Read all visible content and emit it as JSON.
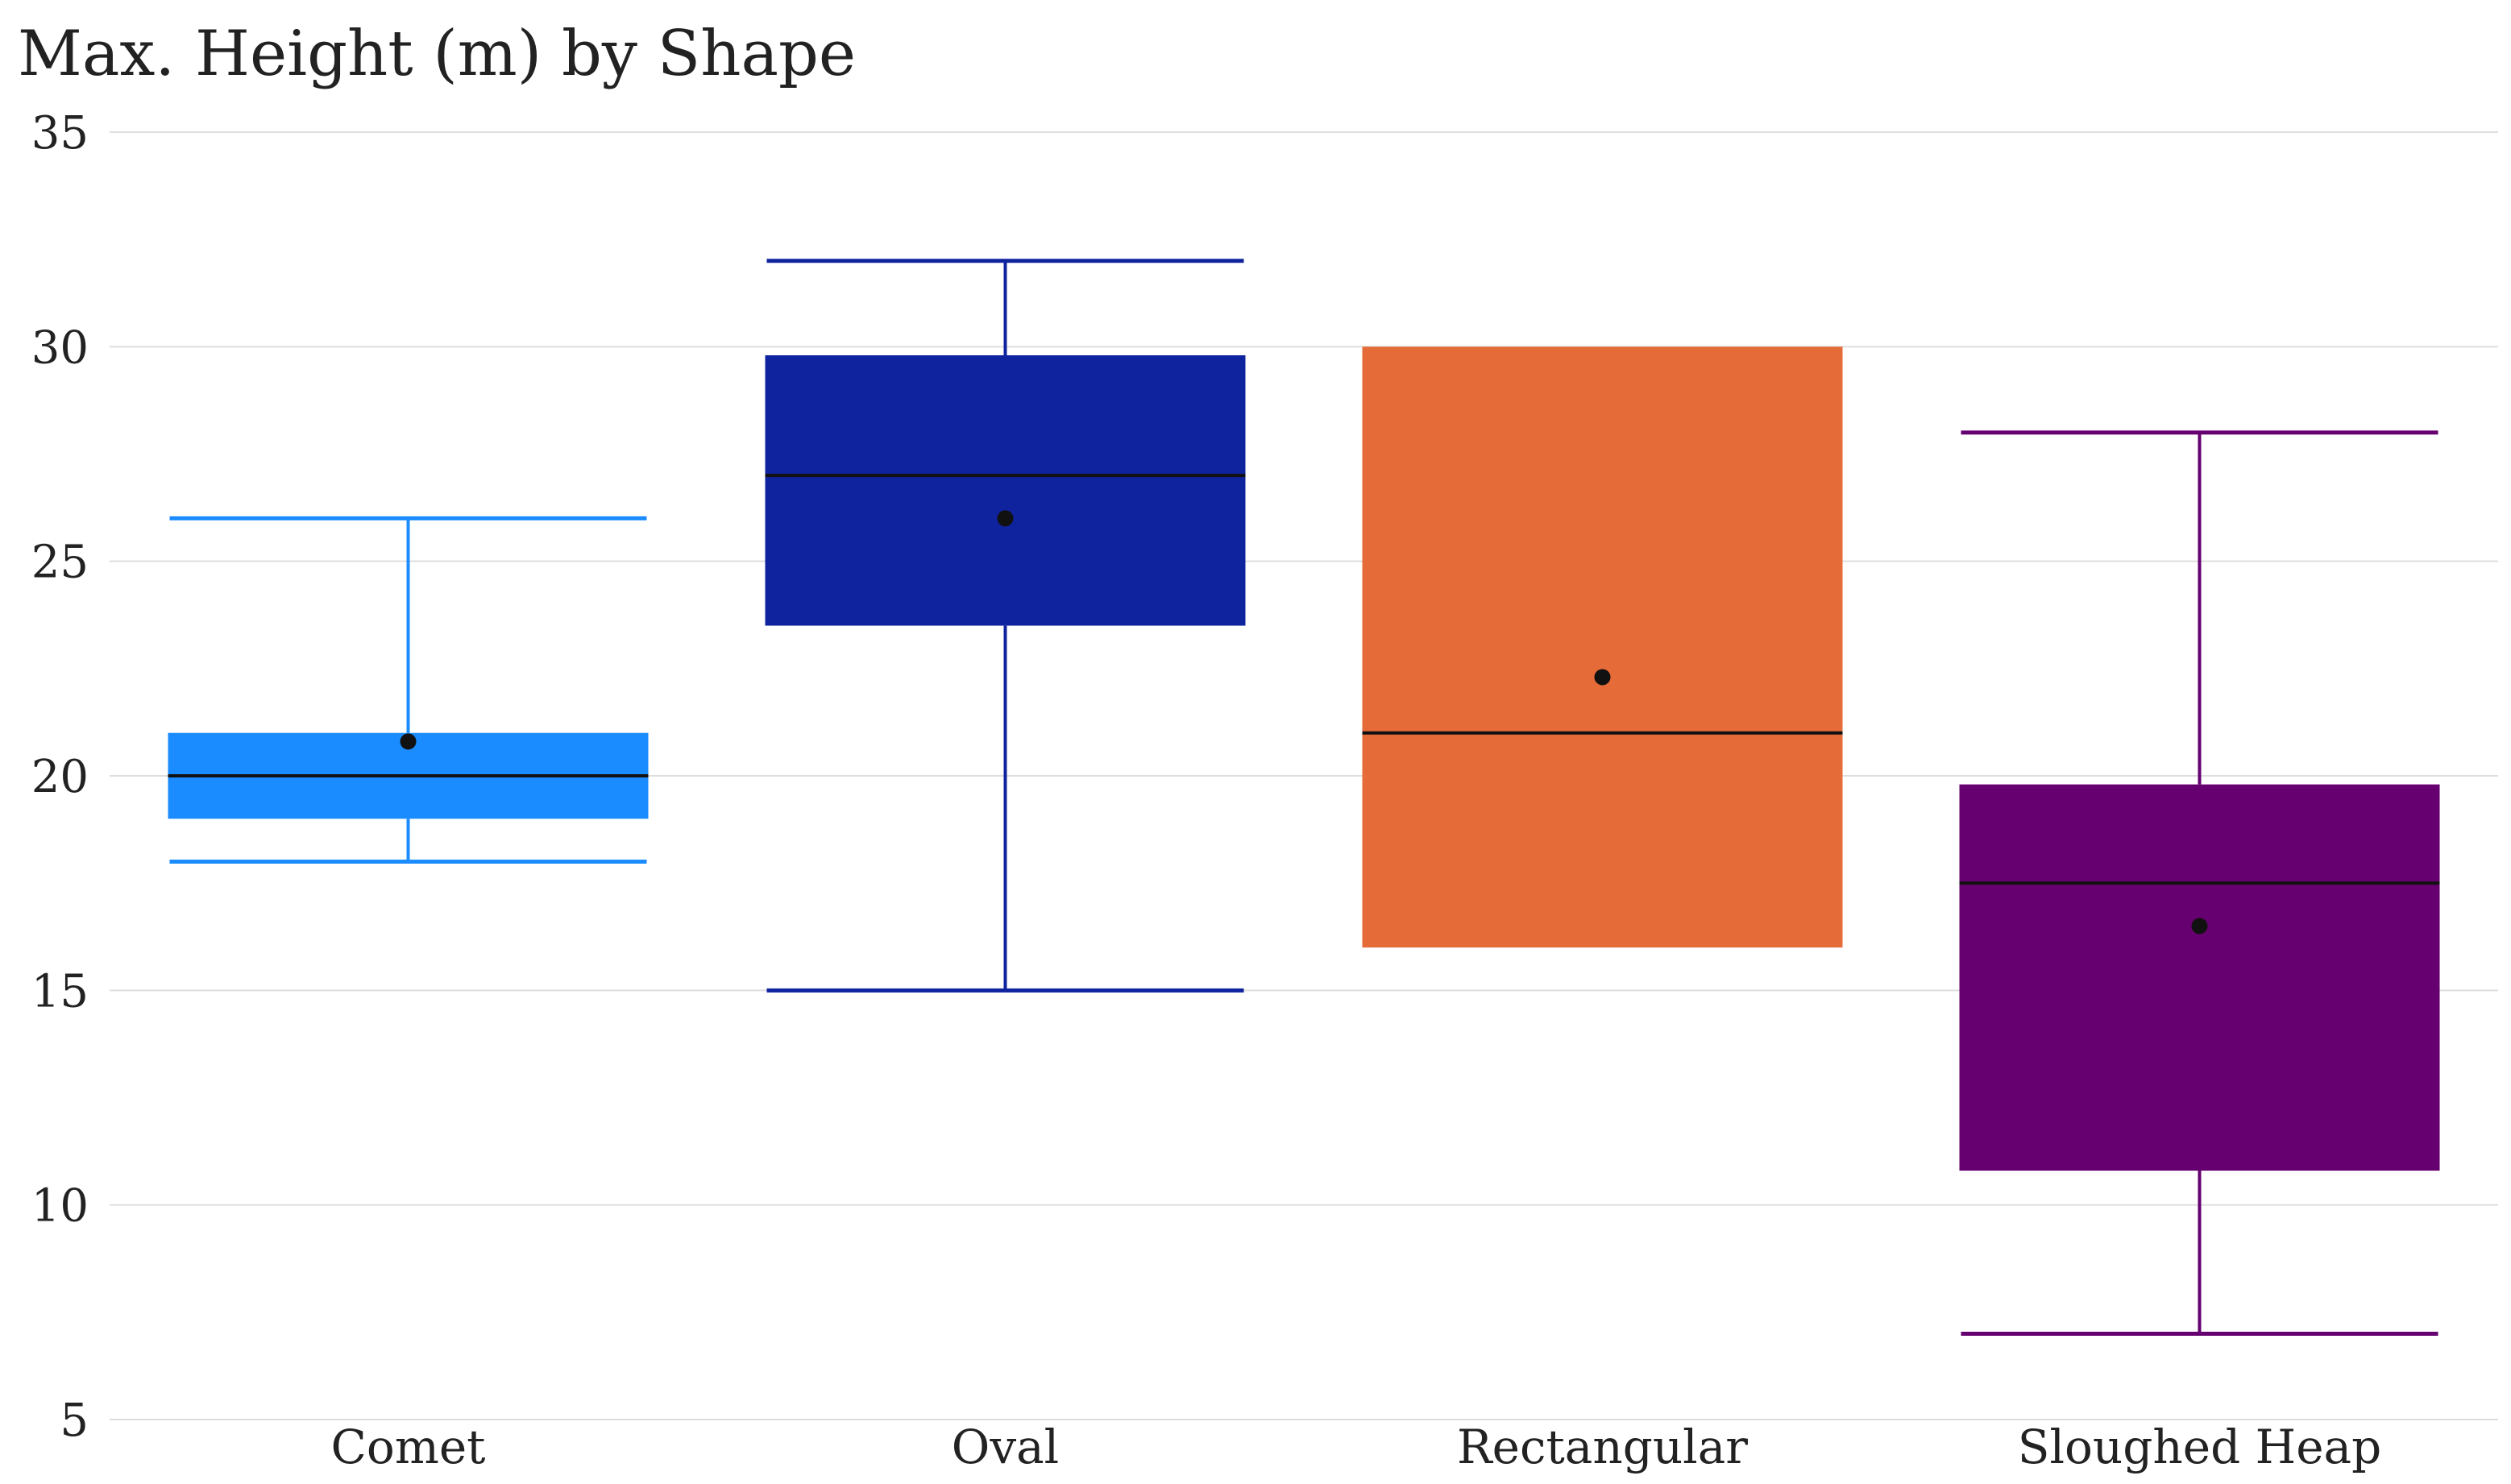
{
  "chart_data": {
    "type": "box",
    "title": "Max. Height (m) by Shape",
    "xlabel": "",
    "ylabel": "",
    "ylim": [
      5,
      35
    ],
    "yticks": [
      5,
      10,
      15,
      20,
      25,
      30,
      35
    ],
    "grid": true,
    "categories": [
      "Comet",
      "Oval",
      "Rectangular",
      "Sloughed Heap"
    ],
    "boxes": [
      {
        "category": "Comet",
        "min": 18,
        "q1": 19,
        "median": 20,
        "q3": 21,
        "max": 26,
        "mean": 20.8,
        "color": "#1a8cff"
      },
      {
        "category": "Oval",
        "min": 15,
        "q1": 23.5,
        "median": 27,
        "q3": 29.8,
        "max": 32,
        "mean": 26,
        "color": "#10239e"
      },
      {
        "category": "Rectangular",
        "min": 16,
        "q1": 16,
        "median": 21,
        "q3": 30,
        "max": 30,
        "mean": 22.3,
        "color": "#e56b38"
      },
      {
        "category": "Sloughed Heap",
        "min": 7,
        "q1": 10.8,
        "median": 17.5,
        "q3": 19.8,
        "max": 28,
        "mean": 16.5,
        "color": "#660070"
      }
    ]
  }
}
